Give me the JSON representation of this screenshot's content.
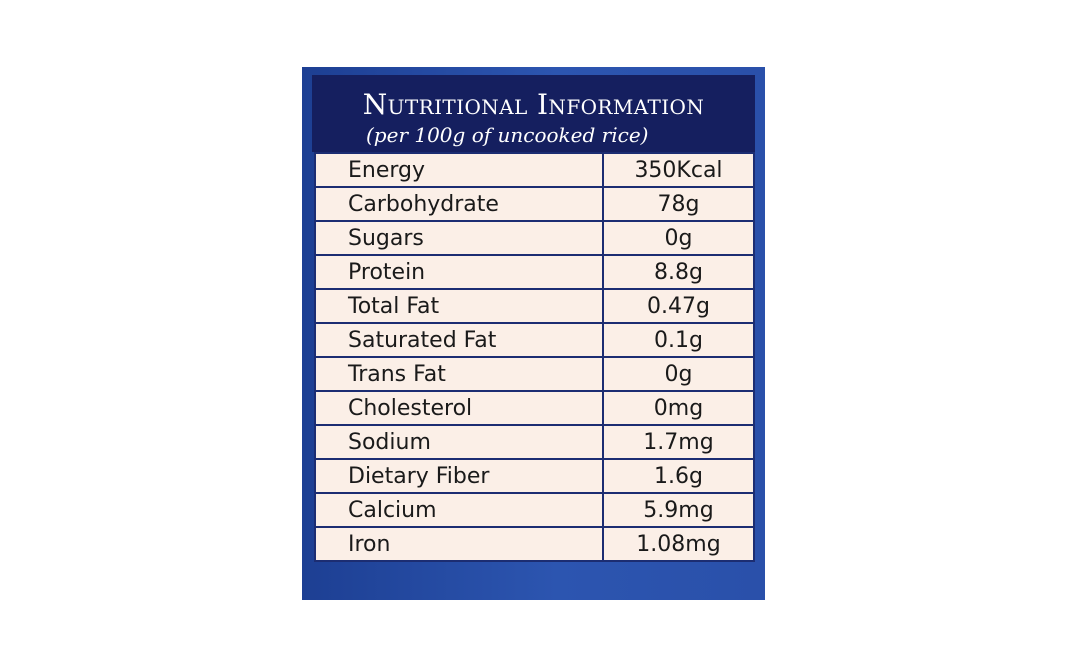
{
  "header": {
    "title": "Nutritional Information",
    "subtitle": "(per 100g of uncooked rice)"
  },
  "nutrition": {
    "rows": [
      {
        "label": "Energy",
        "value": "350Kcal"
      },
      {
        "label": "Carbohydrate",
        "value": "78g"
      },
      {
        "label": "Sugars",
        "value": "0g"
      },
      {
        "label": "Protein",
        "value": "8.8g"
      },
      {
        "label": "Total Fat",
        "value": "0.47g"
      },
      {
        "label": "Saturated Fat",
        "value": "0.1g"
      },
      {
        "label": "Trans Fat",
        "value": "0g"
      },
      {
        "label": "Cholesterol",
        "value": "0mg"
      },
      {
        "label": "Sodium",
        "value": "1.7mg"
      },
      {
        "label": "Dietary Fiber",
        "value": "1.6g"
      },
      {
        "label": "Calcium",
        "value": "5.9mg"
      },
      {
        "label": "Iron",
        "value": "1.08mg"
      }
    ]
  },
  "colors": {
    "panel_blue": "#2c55b0",
    "header_navy": "#151f5f",
    "table_cream": "#fbefe7",
    "grid_line": "#1c2d72"
  }
}
